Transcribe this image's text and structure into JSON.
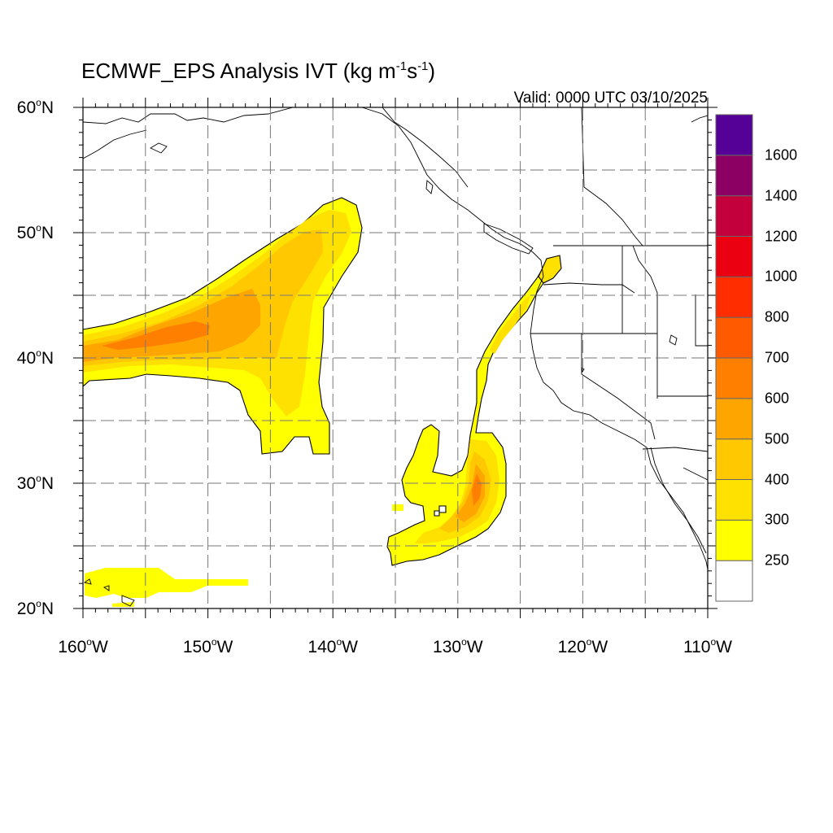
{
  "title": {
    "main": "ECMWF_EPS Analysis IVT (kg m",
    "exp1": "-1",
    "mid": "s",
    "exp2": "-1",
    "end": ")"
  },
  "valid_label": "Valid: 0000 UTC 03/10/2025",
  "degree_mark": "o",
  "lat_labels": [
    {
      "num": "60",
      "hemi": "N"
    },
    {
      "num": "50",
      "hemi": "N"
    },
    {
      "num": "40",
      "hemi": "N"
    },
    {
      "num": "30",
      "hemi": "N"
    },
    {
      "num": "20",
      "hemi": "N"
    }
  ],
  "lon_labels": [
    {
      "num": "160",
      "hemi": "W"
    },
    {
      "num": "150",
      "hemi": "W"
    },
    {
      "num": "140",
      "hemi": "W"
    },
    {
      "num": "130",
      "hemi": "W"
    },
    {
      "num": "120",
      "hemi": "W"
    },
    {
      "num": "110",
      "hemi": "W"
    }
  ],
  "map": {
    "lon_range": [
      -160,
      -110
    ],
    "lat_range": [
      20,
      60
    ],
    "grid_spacing_deg": 5,
    "grid": true,
    "projection": "cylindrical equidistant"
  },
  "colorbar": {
    "placement": "right",
    "levels": [
      250,
      300,
      400,
      500,
      600,
      700,
      800,
      1000,
      1200,
      1400,
      1600
    ],
    "tick_labels": [
      "250",
      "300",
      "400",
      "500",
      "600",
      "700",
      "800",
      "1000",
      "1200",
      "1400",
      "1600"
    ],
    "colors": [
      "#ffffff",
      "#ffff00",
      "#ffe100",
      "#ffc800",
      "#ffa500",
      "#ff7f00",
      "#ff5a00",
      "#ff2d00",
      "#eb0011",
      "#c3003c",
      "#8c0064",
      "#550096"
    ]
  },
  "ivt_features": [
    {
      "name": "north-pacific-ar",
      "max_level": 600,
      "peak_lon": -153,
      "peak_lat": 42
    },
    {
      "name": "subtropical-cutoff-ar",
      "max_level": 600,
      "peak_lon": -128.5,
      "peak_lat": 30
    },
    {
      "name": "hawaii-plume",
      "max_level": 300
    },
    {
      "name": "california-coastal-filament",
      "max_level": 400
    }
  ]
}
